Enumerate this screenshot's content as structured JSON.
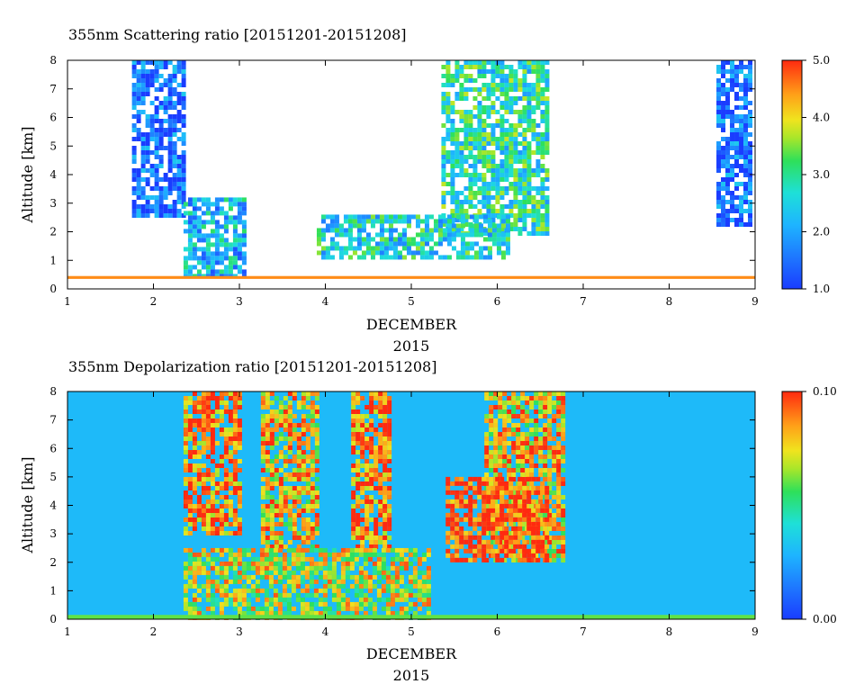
{
  "chart_data": [
    {
      "type": "heatmap",
      "title": "355nm Scattering ratio [20151201-20151208]",
      "xlabel": "DECEMBER",
      "xlabel2": "2015",
      "ylabel": "Altitude [km]",
      "xlim": [
        1,
        9
      ],
      "ylim": [
        0,
        8
      ],
      "xticks": [
        "1",
        "2",
        "3",
        "4",
        "5",
        "6",
        "7",
        "8",
        "9"
      ],
      "yticks": [
        "0",
        "1",
        "2",
        "3",
        "4",
        "5",
        "6",
        "7",
        "8"
      ],
      "colorbar": {
        "min": 1.0,
        "max": 5.0,
        "ticks": [
          "1.0",
          "2.0",
          "3.0",
          "4.0",
          "5.0"
        ]
      },
      "features": [
        {
          "kind": "cloud",
          "x": [
            1.75,
            2.35
          ],
          "y": [
            2.6,
            8.0
          ],
          "value": 1.4
        },
        {
          "kind": "cloud",
          "x": [
            8.55,
            8.95
          ],
          "y": [
            2.3,
            8.0
          ],
          "value": 1.4
        },
        {
          "kind": "cloud",
          "x": [
            5.35,
            6.6
          ],
          "y": [
            2.0,
            8.0
          ],
          "value": 2.8
        },
        {
          "kind": "aerosol",
          "x": [
            3.9,
            6.1
          ],
          "y": [
            1.1,
            2.6
          ],
          "value": 2.6
        },
        {
          "kind": "aerosol",
          "x": [
            2.35,
            3.05
          ],
          "y": [
            0.4,
            3.2
          ],
          "value": 2.2
        },
        {
          "kind": "surface",
          "x": [
            1.0,
            9.0
          ],
          "y": [
            0.35,
            0.45
          ],
          "value": 4.5
        }
      ]
    },
    {
      "type": "heatmap",
      "title": "355nm Depolarization ratio [20151201-20151208]",
      "xlabel": "DECEMBER",
      "xlabel2": "2015",
      "ylabel": "Altitude [km]",
      "xlim": [
        1,
        9
      ],
      "ylim": [
        0,
        8
      ],
      "xticks": [
        "1",
        "2",
        "3",
        "4",
        "5",
        "6",
        "7",
        "8",
        "9"
      ],
      "yticks": [
        "0",
        "1",
        "2",
        "3",
        "4",
        "5",
        "6",
        "7",
        "8"
      ],
      "colorbar": {
        "min": 0.0,
        "max": 0.1,
        "ticks": [
          "0.00",
          "0.10"
        ]
      },
      "features": [
        {
          "kind": "noise",
          "x": [
            2.35,
            3.0
          ],
          "y": [
            3.0,
            8.0
          ],
          "value": 0.09
        },
        {
          "kind": "noise",
          "x": [
            3.25,
            3.9
          ],
          "y": [
            2.5,
            8.0
          ],
          "value": 0.08
        },
        {
          "kind": "noise",
          "x": [
            4.3,
            4.75
          ],
          "y": [
            2.5,
            8.0
          ],
          "value": 0.09
        },
        {
          "kind": "noise",
          "x": [
            5.85,
            6.75
          ],
          "y": [
            2.0,
            8.0
          ],
          "value": 0.08
        },
        {
          "kind": "layer",
          "x": [
            2.35,
            5.2
          ],
          "y": [
            0.0,
            2.5
          ],
          "value": 0.07
        },
        {
          "kind": "layer",
          "x": [
            5.4,
            6.6
          ],
          "y": [
            2.0,
            5.0
          ],
          "value": 0.1
        },
        {
          "kind": "surface",
          "x": [
            1.0,
            9.0
          ],
          "y": [
            0.0,
            0.15
          ],
          "value": 0.06
        }
      ]
    }
  ]
}
